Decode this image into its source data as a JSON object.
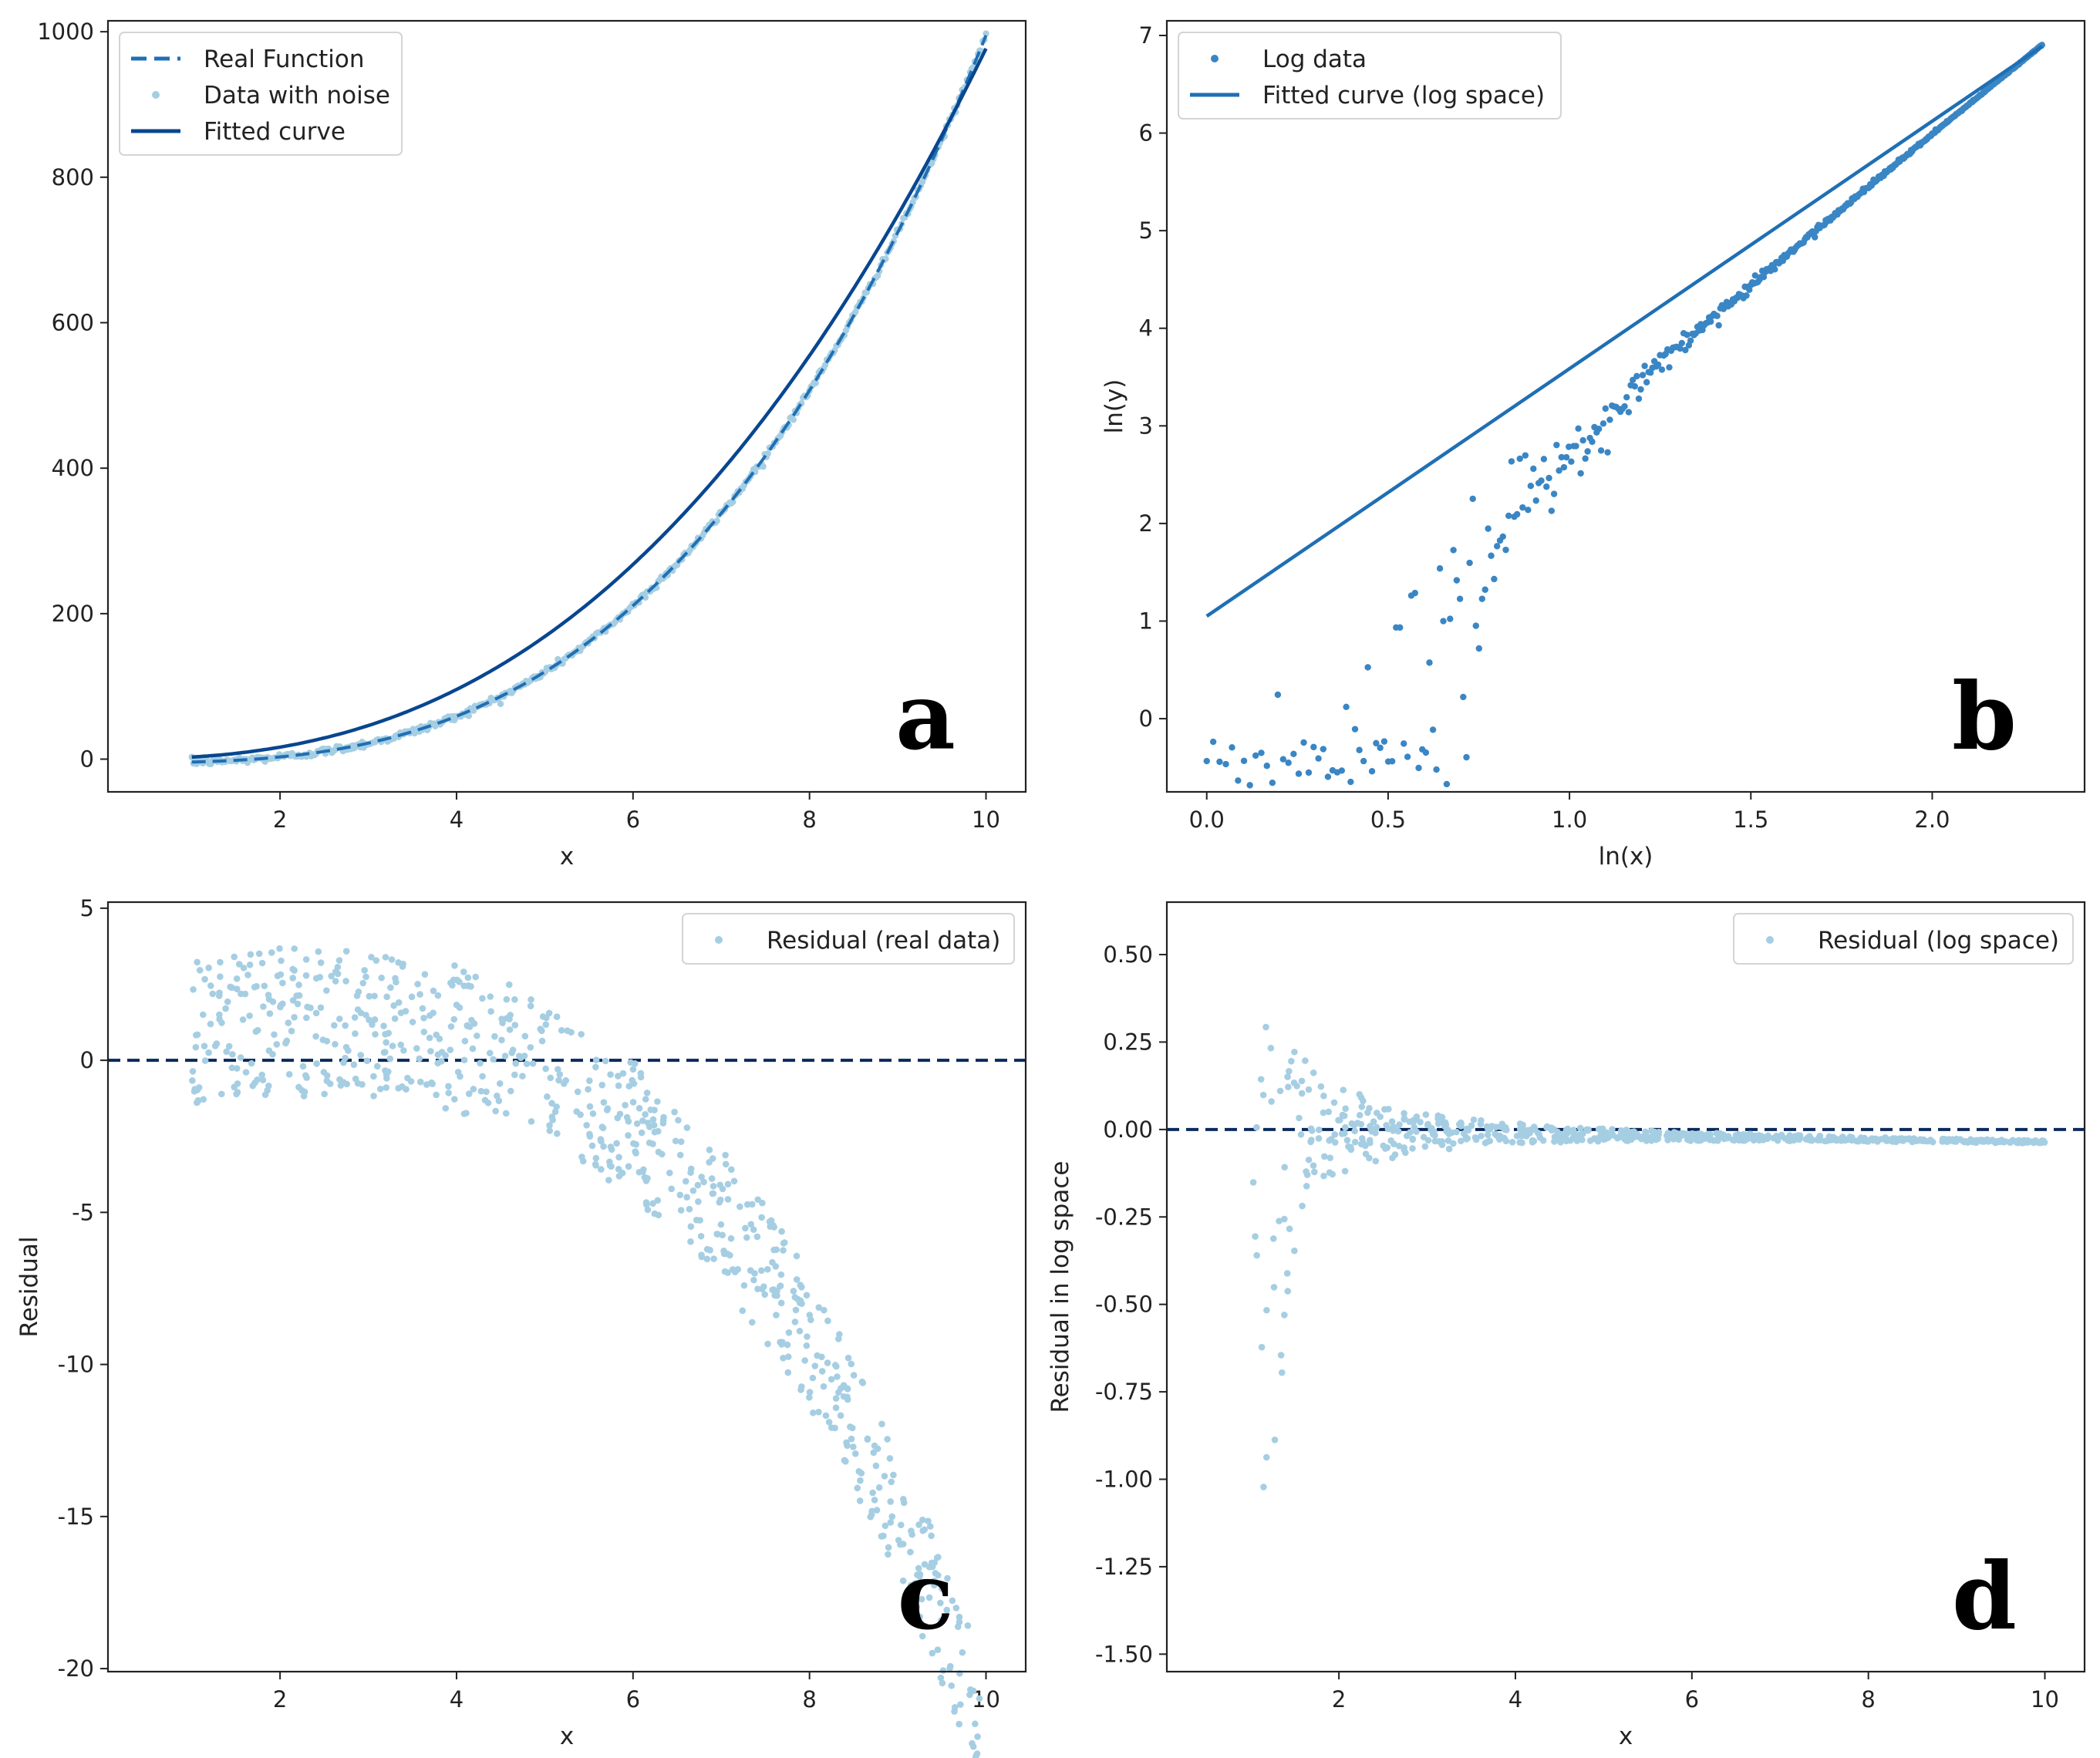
{
  "colors": {
    "real_function": "#1f6fb4",
    "noise_points": "#a6cee3",
    "fitted_curve": "#08468f",
    "log_points": "#3a86c4",
    "log_fit": "#1f6fb4",
    "residual_points": "#a6cee3",
    "zero_line": "#0b2a5c",
    "axes": "#222222"
  },
  "chart_data": [
    {
      "panel": "a",
      "type": "line",
      "xlabel": "x",
      "ylabel": "",
      "xlim": [
        0.05,
        10.45
      ],
      "ylim": [
        -45,
        1015
      ],
      "xticks": [
        2,
        4,
        6,
        8,
        10
      ],
      "yticks": [
        0,
        200,
        400,
        600,
        800,
        1000
      ],
      "xticklabels": [
        "2",
        "4",
        "6",
        "8",
        "10"
      ],
      "yticklabels": [
        "0",
        "200",
        "400",
        "600",
        "800",
        "1000"
      ],
      "legend_position": "top-left",
      "legend": [
        "Real Function",
        "Data with noise",
        "Fitted curve"
      ],
      "series": [
        {
          "name": "Real Function",
          "style": "dashed",
          "function": "y = x^3 - 5 (approx)",
          "x_range": [
            1,
            10
          ]
        },
        {
          "name": "Data with noise",
          "style": "scatter",
          "x_range": [
            1,
            10
          ],
          "y_approx": "x^3 with small noise"
        },
        {
          "name": "Fitted curve",
          "style": "solid",
          "function": "y = 2.85 * x^2.535",
          "x_range": [
            1,
            10
          ],
          "y_at_10": 976
        }
      ]
    },
    {
      "panel": "b",
      "type": "scatter",
      "xlabel": "ln(x)",
      "ylabel": "ln(y)",
      "xlim": [
        -0.11,
        2.42
      ],
      "ylim": [
        -0.75,
        7.15
      ],
      "xticks": [
        0.0,
        0.5,
        1.0,
        1.5,
        2.0
      ],
      "yticks": [
        0,
        1,
        2,
        3,
        4,
        5,
        6,
        7
      ],
      "xticklabels": [
        "0.0",
        "0.5",
        "1.0",
        "1.5",
        "2.0"
      ],
      "yticklabels": [
        "0",
        "1",
        "2",
        "3",
        "4",
        "5",
        "6",
        "7"
      ],
      "legend_position": "top-left",
      "legend": [
        "Log data",
        "Fitted curve (log space)"
      ],
      "series": [
        {
          "name": "Log data",
          "style": "scatter",
          "x_range": [
            0,
            2.303
          ],
          "y_start": -0.3,
          "y_end": 6.9
        },
        {
          "name": "Fitted curve (log space)",
          "style": "solid",
          "x": [
            0.0,
            2.303
          ],
          "y": [
            1.05,
            6.89
          ]
        }
      ]
    },
    {
      "panel": "c",
      "type": "scatter",
      "xlabel": "x",
      "ylabel": "Residual",
      "xlim": [
        0.05,
        10.45
      ],
      "ylim": [
        -20.1,
        5.2
      ],
      "xticks": [
        2,
        4,
        6,
        8,
        10
      ],
      "yticks": [
        5,
        0,
        -5,
        -10,
        -15,
        -20
      ],
      "xticklabels": [
        "2",
        "4",
        "6",
        "8",
        "10"
      ],
      "yticklabels": [
        "5",
        "0",
        "-5",
        "-10",
        "-15",
        "-20"
      ],
      "legend_position": "top-right",
      "legend": [
        "Residual (real data)"
      ],
      "zero_line": 0,
      "series": [
        {
          "name": "Residual (real data)",
          "style": "scatter",
          "x_range": [
            1,
            10
          ],
          "y_min": -19,
          "y_max": 4
        }
      ]
    },
    {
      "panel": "d",
      "type": "scatter",
      "xlabel": "x",
      "ylabel": "Residual in log space",
      "xlim": [
        0.05,
        10.45
      ],
      "ylim": [
        -1.55,
        0.65
      ],
      "xticks": [
        2,
        4,
        6,
        8,
        10
      ],
      "yticks": [
        0.5,
        0.25,
        0.0,
        -0.25,
        -0.5,
        -0.75,
        -1.0,
        -1.25,
        -1.5
      ],
      "xticklabels": [
        "2",
        "4",
        "6",
        "8",
        "10"
      ],
      "yticklabels": [
        "0.50",
        "0.25",
        "0.00",
        "-0.25",
        "-0.50",
        "-0.75",
        "-1.00",
        "-1.25",
        "-1.50"
      ],
      "legend_position": "top-right",
      "legend": [
        "Residual (log space)"
      ],
      "zero_line": 0,
      "series": [
        {
          "name": "Residual (log space)",
          "style": "scatter",
          "x_range": [
            1,
            10
          ],
          "y_min": -1.45,
          "y_max": 0.57
        }
      ]
    }
  ],
  "panel_labels": [
    "a",
    "b",
    "c",
    "d"
  ]
}
